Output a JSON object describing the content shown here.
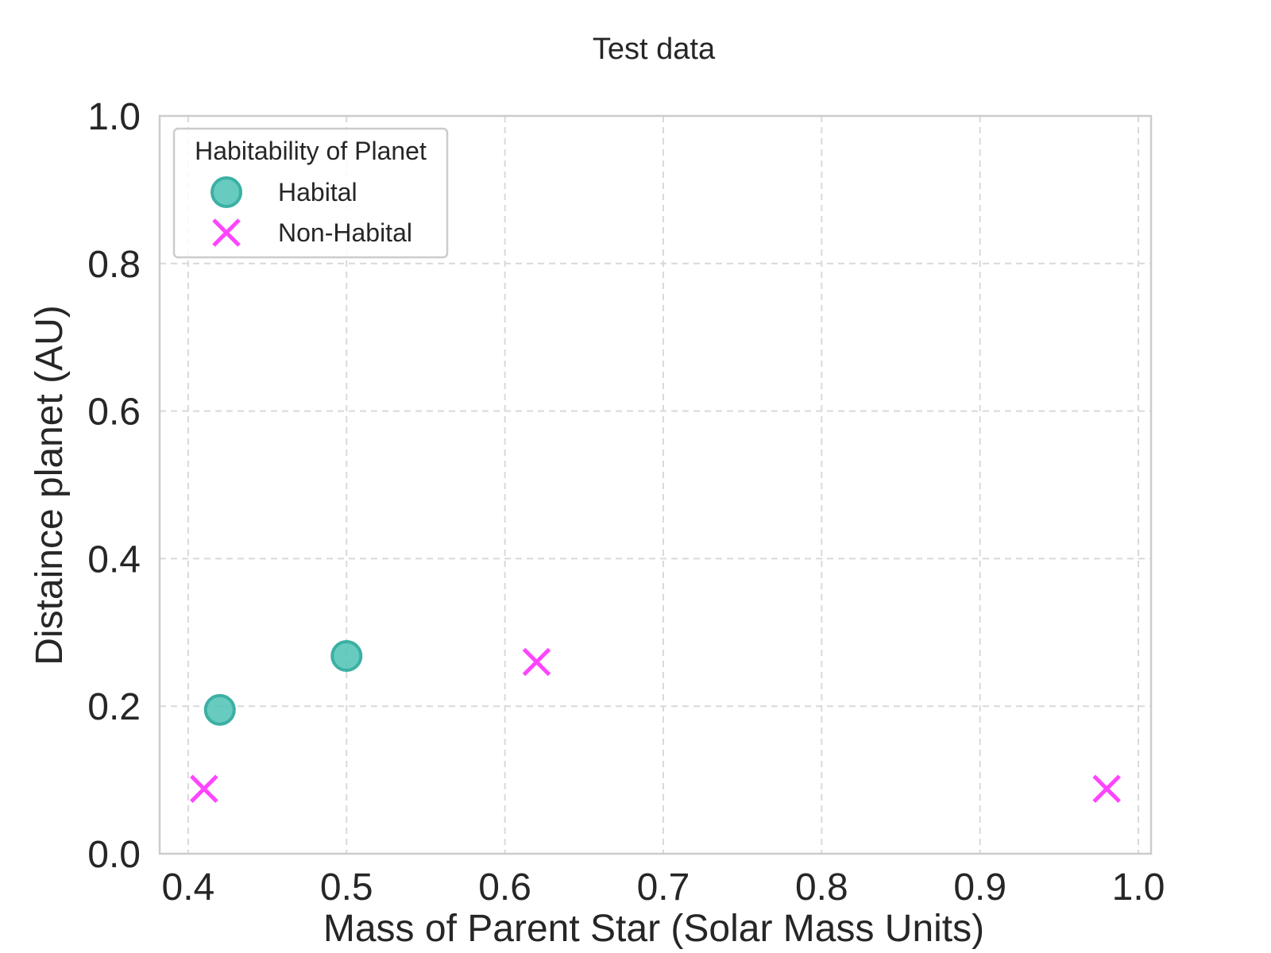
{
  "chart_data": {
    "type": "scatter",
    "title": "Test data",
    "xlabel": "Mass of Parent Star (Solar Mass Units)",
    "ylabel": "Distaince planet (AU)",
    "xlim": [
      0.382,
      1.008
    ],
    "ylim": [
      0.0,
      1.0
    ],
    "xticks": [
      "0.4",
      "0.5",
      "0.6",
      "0.7",
      "0.8",
      "0.9",
      "1.0"
    ],
    "yticks": [
      "0.0",
      "0.2",
      "0.4",
      "0.6",
      "0.8",
      "1.0"
    ],
    "grid": true,
    "legend": {
      "title": "Habitability of Planet",
      "placement": "upper-left"
    },
    "series": [
      {
        "name": "Habital",
        "marker": "circle",
        "color": "#4dc2b5",
        "edge_color": "#3bb0a3",
        "points": [
          {
            "x": 0.42,
            "y": 0.195
          },
          {
            "x": 0.5,
            "y": 0.268
          }
        ]
      },
      {
        "name": "Non-Habital",
        "marker": "x",
        "color": "#ff44ff",
        "points": [
          {
            "x": 0.41,
            "y": 0.088
          },
          {
            "x": 0.62,
            "y": 0.26
          },
          {
            "x": 0.98,
            "y": 0.088
          }
        ]
      }
    ]
  }
}
